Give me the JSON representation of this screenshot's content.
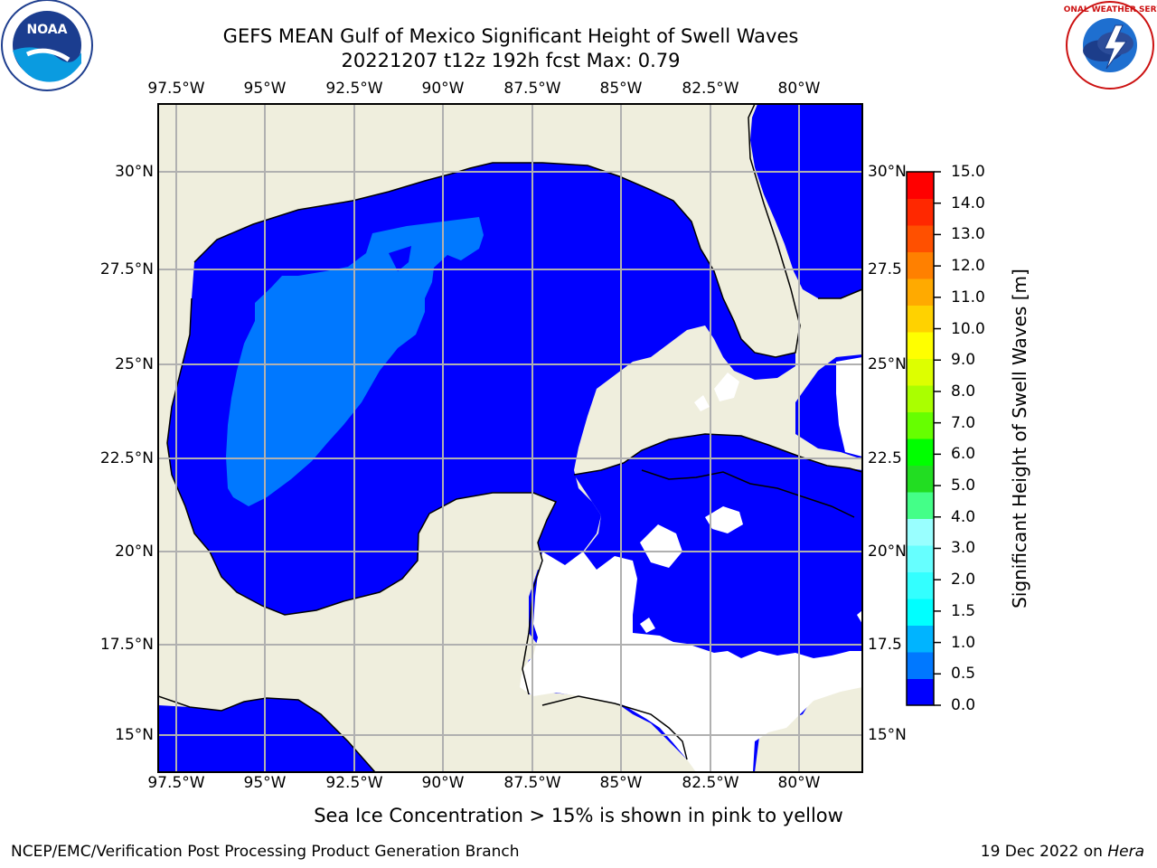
{
  "title_line1": "GEFS MEAN Gulf of Mexico Significant Height of Swell Waves",
  "title_line2": "20221207 t12z 192h fcst   Max: 0.79",
  "lon_labels": [
    "97.5°W",
    "95°W",
    "92.5°W",
    "90°W",
    "87.5°W",
    "85°W",
    "82.5°W",
    "80°W"
  ],
  "lat_labels_left": [
    "30°N",
    "27.5°N",
    "25°N",
    "22.5°N",
    "20°N",
    "17.5°N",
    "15°N"
  ],
  "lat_labels_right": [
    "30°N",
    "27.5",
    "25°N",
    "22.5",
    "20°N",
    "17.5",
    "15°N"
  ],
  "colorbar": {
    "label": "Significant Height of Swell Waves [m]",
    "ticks": [
      "15.0",
      "14.0",
      "13.0",
      "12.0",
      "11.0",
      "10.0",
      "9.0",
      "8.0",
      "7.0",
      "6.0",
      "5.0",
      "4.0",
      "3.0",
      "2.0",
      "1.5",
      "1.0",
      "0.5",
      "0.0"
    ],
    "colors": [
      "#0000ff",
      "#0078ff",
      "#00b4ff",
      "#00ffff",
      "#33ffff",
      "#66ffff",
      "#99ffff",
      "#44ff88",
      "#22dd22",
      "#00ff00",
      "#66ff00",
      "#aaff00",
      "#ddff00",
      "#ffff00",
      "#ffd200",
      "#ffaa00",
      "#ff8000",
      "#ff5000",
      "#ff2800",
      "#ff0000"
    ]
  },
  "colors": {
    "land": "#efeedd",
    "ocean": "#0000ff",
    "swell_band": "#0078ff",
    "grid": "#b0b0b0"
  },
  "footer_note": "Sea Ice Concentration > 15% is shown in pink to yellow",
  "footer_left": "NCEP/EMC/Verification Post Processing Product Generation Branch",
  "footer_right_prefix": "19 Dec 2022 on ",
  "footer_right_host": "Hera",
  "logo_left": "NOAA",
  "logo_right_text": "NATIONAL WEATHER SERVICE"
}
